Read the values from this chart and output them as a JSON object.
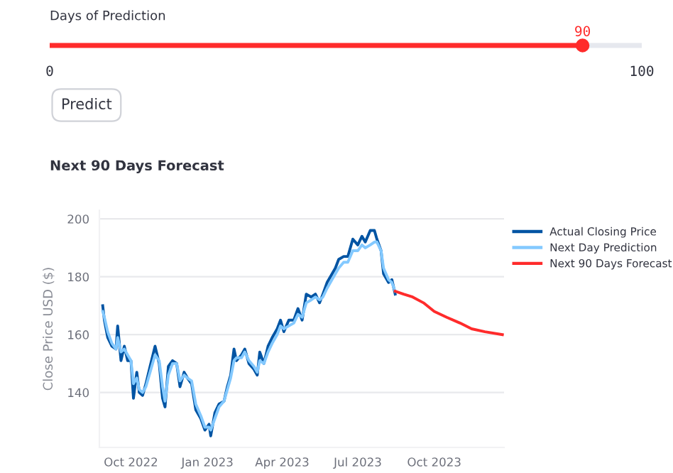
{
  "chart_data": [
    {
      "type": "other",
      "title": "Days of Prediction",
      "values": [
        90
      ],
      "data_labels": true,
      "color": "#ff2b2b",
      "annotations": [
        "0",
        "100",
        "Predict"
      ]
    },
    {
      "type": "line",
      "title": "Next 90 Days Forecast",
      "ylabel": "Close Price USD ($)",
      "x": [
        "2022-08-28",
        "2022-08-30",
        "2022-09-03",
        "2022-09-08",
        "2022-09-13",
        "2022-09-15",
        "2022-09-19",
        "2022-09-23",
        "2022-09-27",
        "2022-10-01",
        "2022-10-04",
        "2022-10-08",
        "2022-10-11",
        "2022-10-15",
        "2022-10-19",
        "2022-10-24",
        "2022-10-30",
        "2022-11-04",
        "2022-11-08",
        "2022-11-11",
        "2022-11-15",
        "2022-11-20",
        "2022-11-25",
        "2022-11-29",
        "2022-12-04",
        "2022-12-08",
        "2022-12-13",
        "2022-12-18",
        "2022-12-24",
        "2022-12-29",
        "2023-01-03",
        "2023-01-05",
        "2023-01-10",
        "2023-01-15",
        "2023-01-21",
        "2023-01-25",
        "2023-01-29",
        "2023-02-02",
        "2023-02-05",
        "2023-02-11",
        "2023-02-15",
        "2023-02-20",
        "2023-02-26",
        "2023-03-02",
        "2023-03-05",
        "2023-03-10",
        "2023-03-15",
        "2023-03-20",
        "2023-03-26",
        "2023-03-30",
        "2023-04-03",
        "2023-04-09",
        "2023-04-15",
        "2023-04-20",
        "2023-04-25",
        "2023-04-30",
        "2023-05-06",
        "2023-05-11",
        "2023-05-16",
        "2023-05-20",
        "2023-05-25",
        "2023-05-29",
        "2023-06-04",
        "2023-06-08",
        "2023-06-14",
        "2023-06-19",
        "2023-06-25",
        "2023-07-01",
        "2023-07-06",
        "2023-07-10",
        "2023-07-16",
        "2023-07-21",
        "2023-07-24",
        "2023-07-29",
        "2023-08-01",
        "2023-08-07",
        "2023-08-11",
        "2023-08-15"
      ],
      "series": [
        {
          "name": "Actual Closing Price",
          "color": "#0054a3",
          "values": [
            170,
            165,
            159,
            156,
            155,
            163,
            151,
            156,
            151,
            151,
            138,
            147,
            140,
            139,
            143,
            149,
            156,
            150,
            138,
            135,
            149,
            151,
            150,
            142,
            147,
            145,
            143,
            134,
            131,
            127,
            129,
            125,
            133,
            136,
            137,
            142,
            146,
            155,
            151,
            153,
            155,
            150,
            148,
            146,
            154,
            150,
            156,
            159,
            162,
            165,
            161,
            165,
            165,
            169,
            165,
            174,
            173,
            174,
            171,
            174,
            178,
            180,
            183,
            186,
            187,
            187,
            193,
            191,
            194,
            192,
            196,
            196,
            193,
            189,
            181,
            178,
            179,
            174
          ]
        },
        {
          "name": "Next Day Prediction",
          "color": "#83c9ff",
          "values": [
            168,
            166,
            161,
            157,
            155,
            159,
            154,
            155,
            153,
            151,
            143,
            145,
            141,
            140,
            142,
            147,
            153,
            151,
            142,
            137,
            146,
            150,
            150,
            144,
            146,
            145,
            144,
            136,
            132,
            128,
            128,
            127,
            131,
            135,
            137,
            141,
            145,
            151,
            152,
            152,
            154,
            151,
            149,
            147,
            151,
            150,
            154,
            157,
            160,
            163,
            162,
            163,
            164,
            167,
            166,
            171,
            172,
            173,
            172,
            173,
            176,
            178,
            181,
            183,
            185,
            185,
            189,
            189,
            191,
            190,
            191,
            192,
            192,
            189,
            183,
            179,
            178,
            175
          ]
        },
        {
          "name": "Next 90 Days Forecast",
          "color": "#ff2b2b",
          "x": [
            "2023-08-15",
            "2023-08-25",
            "2023-09-05",
            "2023-09-18",
            "2023-10-01",
            "2023-10-16",
            "2023-11-01",
            "2023-11-15",
            "2023-12-01",
            "2023-12-22"
          ],
          "values": [
            175,
            174,
            173,
            171,
            168,
            166,
            164,
            162,
            161,
            160
          ]
        }
      ],
      "xlim": [
        "2022-08-24",
        "2023-12-24"
      ],
      "xticks": [
        {
          "value": "2022-10-01",
          "label": "Oct 2022"
        },
        {
          "value": "2023-01-01",
          "label": "Jan 2023"
        },
        {
          "value": "2023-04-01",
          "label": "Apr 2023"
        },
        {
          "value": "2023-07-01",
          "label": "Jul 2023"
        },
        {
          "value": "2023-10-01",
          "label": "Oct 2023"
        }
      ],
      "ylim": [
        121,
        203
      ],
      "yticks": [
        140,
        160,
        180,
        200
      ],
      "grid": "y",
      "legend": "right",
      "line_style": "solid",
      "marker": "none"
    }
  ]
}
